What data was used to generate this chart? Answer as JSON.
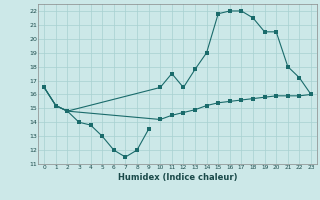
{
  "xlabel": "Humidex (Indice chaleur)",
  "bg_color": "#cce8e8",
  "grid_color": "#a8d0d0",
  "line_color": "#1a6b6b",
  "xlim": [
    -0.5,
    23.5
  ],
  "ylim": [
    11,
    22.5
  ],
  "xticks": [
    0,
    1,
    2,
    3,
    4,
    5,
    6,
    7,
    8,
    9,
    10,
    11,
    12,
    13,
    14,
    15,
    16,
    17,
    18,
    19,
    20,
    21,
    22,
    23
  ],
  "yticks": [
    11,
    12,
    13,
    14,
    15,
    16,
    17,
    18,
    19,
    20,
    21,
    22
  ],
  "curve1_x": [
    0,
    1,
    2,
    3,
    4,
    5,
    6,
    7,
    8,
    9
  ],
  "curve1_y": [
    16.5,
    15.2,
    14.8,
    14.0,
    13.8,
    13.0,
    12.0,
    11.5,
    12.0,
    13.5
  ],
  "curve2_x": [
    0,
    1,
    2,
    10,
    11,
    12,
    13,
    14,
    15,
    16,
    17,
    18,
    19,
    20,
    21,
    22,
    23
  ],
  "curve2_y": [
    16.5,
    15.2,
    14.8,
    16.5,
    17.5,
    16.5,
    17.8,
    19.0,
    21.8,
    22.0,
    22.0,
    21.5,
    20.5,
    20.5,
    18.0,
    17.2,
    16.0
  ],
  "curve3_x": [
    0,
    1,
    2,
    10,
    11,
    12,
    13,
    14,
    15,
    16,
    17,
    18,
    19,
    20,
    21,
    22,
    23
  ],
  "curve3_y": [
    16.5,
    15.2,
    14.8,
    14.2,
    14.5,
    14.7,
    14.9,
    15.2,
    15.4,
    15.5,
    15.6,
    15.7,
    15.8,
    15.9,
    15.9,
    15.9,
    16.0
  ],
  "marker_size": 2.5,
  "line_width": 0.8
}
